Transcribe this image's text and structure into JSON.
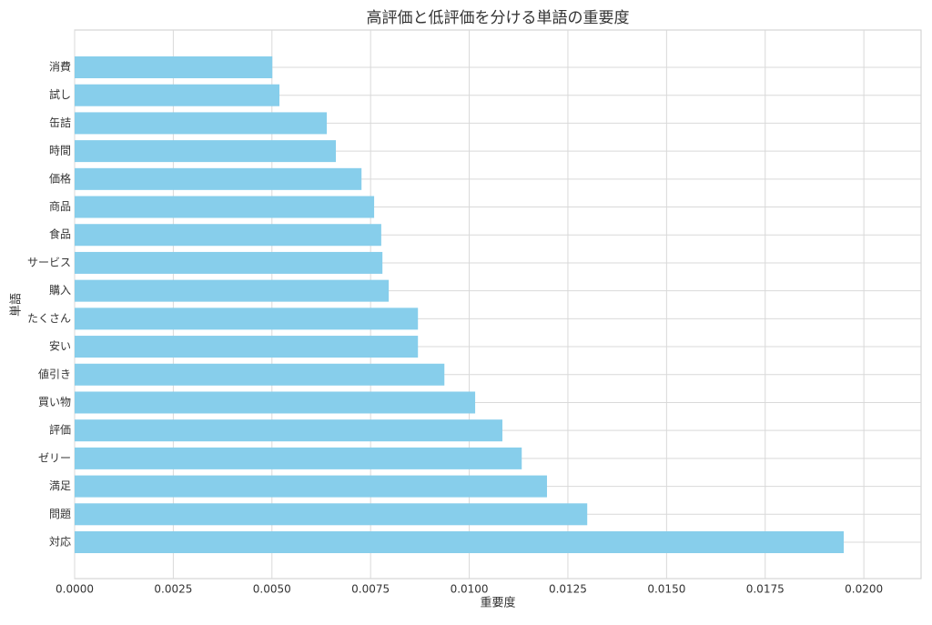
{
  "chart_data": {
    "type": "barh",
    "title": "高評価と低評価を分ける単語の重要度",
    "x_label": "重要度",
    "y_label": "単語",
    "categories": [
      "消費",
      "試し",
      "缶詰",
      "時間",
      "価格",
      "商品",
      "食品",
      "サービス",
      "購入",
      "たくさん",
      "安い",
      "値引き",
      "買い物",
      "評価",
      "ゼリー",
      "満足",
      "問題",
      "対応"
    ],
    "values": [
      0.00501,
      0.00519,
      0.00639,
      0.00662,
      0.00727,
      0.00759,
      0.00777,
      0.0078,
      0.00796,
      0.0087,
      0.0087,
      0.00937,
      0.01015,
      0.01084,
      0.01133,
      0.01197,
      0.01299,
      0.01949
    ],
    "color": "#87ceeb",
    "xlim": [
      0,
      0.02145
    ],
    "xticks": [
      {
        "value": 0,
        "label": "0.0000"
      },
      {
        "value": 0.0025,
        "label": "0.0025"
      },
      {
        "value": 0.005,
        "label": "0.0050"
      },
      {
        "value": 0.0075,
        "label": "0.0075"
      },
      {
        "value": 0.01,
        "label": "0.0100"
      },
      {
        "value": 0.0125,
        "label": "0.0125"
      },
      {
        "value": 0.015,
        "label": "0.0150"
      },
      {
        "value": 0.0175,
        "label": "0.0175"
      },
      {
        "value": 0.02,
        "label": "0.0200"
      }
    ],
    "grid": true
  }
}
